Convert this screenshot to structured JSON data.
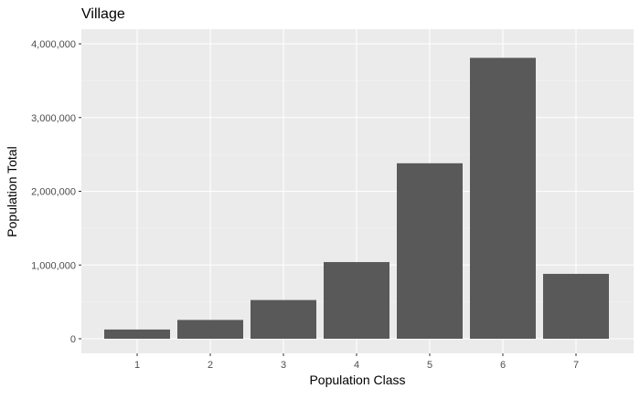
{
  "chart_data": {
    "type": "bar",
    "title": "Village",
    "xlabel": "Population Class",
    "ylabel": "Population Total",
    "categories": [
      "1",
      "2",
      "3",
      "4",
      "5",
      "6",
      "7"
    ],
    "values": [
      125000,
      255000,
      525000,
      1040000,
      2380000,
      3810000,
      880000
    ],
    "ylim": [
      0,
      4000000
    ],
    "yticks": [
      0,
      1000000,
      2000000,
      3000000,
      4000000
    ],
    "ytick_labels": [
      "0",
      "1,000,000",
      "2,000,000",
      "3,000,000",
      "4,000,000"
    ],
    "grid": true,
    "legend": "none",
    "colors": {
      "bar": "#595959",
      "panel": "#ebebeb",
      "grid_major": "#ffffff",
      "grid_minor": "#f5f5f5",
      "text": "#000000",
      "tick_text": "#4d4d4d",
      "tick_mark": "#333333"
    }
  }
}
